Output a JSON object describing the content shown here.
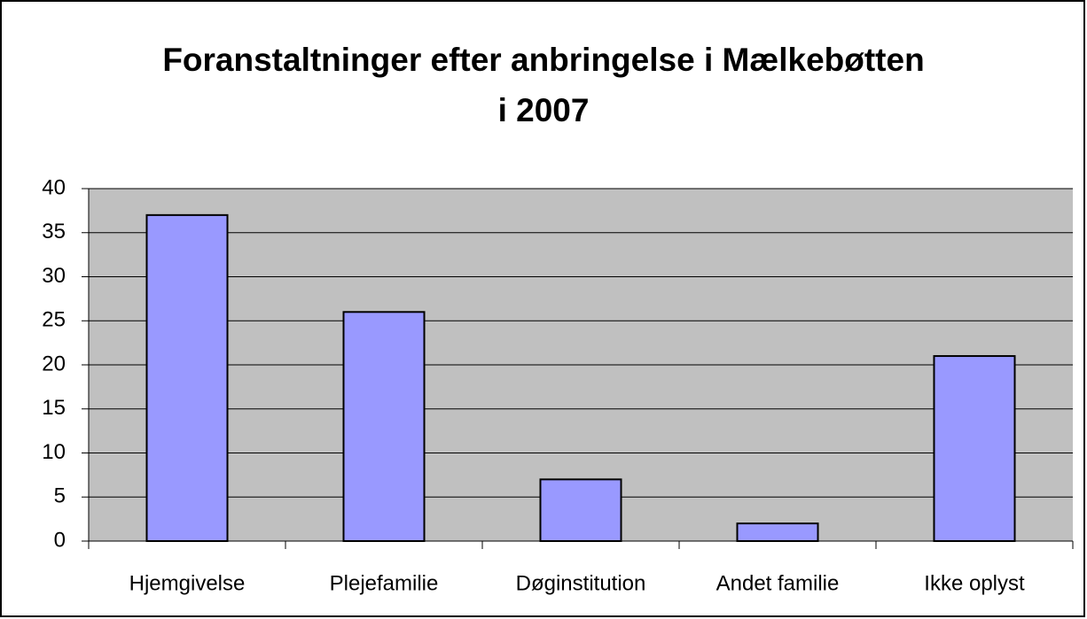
{
  "chart_data": {
    "type": "bar",
    "title": [
      "Foranstaltninger efter anbringelse i Mælkebøtten",
      "i 2007"
    ],
    "categories": [
      "Hjemgivelse",
      "Plejefamilie",
      "Døginstitution",
      "Andet familie",
      "Ikke oplyst"
    ],
    "values": [
      37,
      26,
      7,
      2,
      21
    ],
    "color": "#9999ff",
    "plot_background": "#c0c0c0",
    "ylim": [
      0,
      40
    ],
    "yticks": [
      0,
      5,
      10,
      15,
      20,
      25,
      30,
      35,
      40
    ],
    "grid": true
  }
}
